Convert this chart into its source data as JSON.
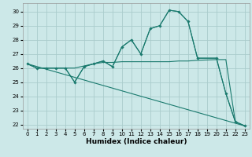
{
  "xlabel": "Humidex (Indice chaleur)",
  "bg_color": "#cce8e8",
  "grid_color": "#aacccc",
  "line_color": "#1a7a6e",
  "xlim": [
    -0.5,
    23.5
  ],
  "ylim": [
    21.7,
    30.6
  ],
  "yticks": [
    22,
    23,
    24,
    25,
    26,
    27,
    28,
    29,
    30
  ],
  "xticks": [
    0,
    1,
    2,
    3,
    4,
    5,
    6,
    7,
    8,
    9,
    10,
    11,
    12,
    13,
    14,
    15,
    16,
    17,
    18,
    19,
    20,
    21,
    22,
    23
  ],
  "s1x": [
    0,
    1,
    2,
    3,
    4,
    5,
    6,
    7,
    8,
    9,
    10,
    11,
    12,
    13,
    14,
    15,
    16,
    17,
    18,
    20,
    21,
    22,
    23
  ],
  "s1y": [
    26.3,
    26.0,
    26.0,
    26.0,
    26.0,
    25.0,
    26.1,
    26.3,
    26.5,
    26.1,
    27.5,
    28.0,
    27.0,
    28.8,
    29.0,
    30.1,
    30.0,
    29.3,
    26.7,
    26.7,
    24.2,
    22.2,
    21.9
  ],
  "s2x": [
    0,
    1,
    2,
    3,
    4,
    5,
    6,
    7,
    8,
    9,
    10,
    11,
    12,
    13,
    14,
    15,
    16,
    17,
    18,
    20,
    21,
    22,
    23
  ],
  "s2y": [
    26.3,
    26.0,
    26.0,
    26.0,
    26.0,
    26.0,
    26.15,
    26.3,
    26.4,
    26.4,
    26.45,
    26.45,
    26.45,
    26.45,
    26.45,
    26.45,
    26.5,
    26.5,
    26.55,
    26.6,
    26.6,
    22.2,
    21.9
  ],
  "s3x": [
    0,
    23
  ],
  "s3y": [
    26.3,
    21.9
  ],
  "s4x": [
    0,
    1,
    2,
    3,
    4,
    5,
    6,
    7,
    8,
    9,
    10,
    11,
    12,
    13,
    14,
    15,
    16,
    17,
    18,
    20,
    21,
    22,
    23
  ],
  "s4y": [
    26.3,
    26.0,
    26.0,
    26.0,
    26.0,
    25.0,
    26.1,
    26.3,
    26.5,
    26.1,
    27.5,
    28.0,
    27.0,
    28.8,
    29.0,
    30.1,
    30.0,
    29.3,
    26.7,
    26.7,
    24.2,
    22.2,
    21.9
  ],
  "xlabel_fontsize": 6.5,
  "tick_fontsize": 5.0
}
